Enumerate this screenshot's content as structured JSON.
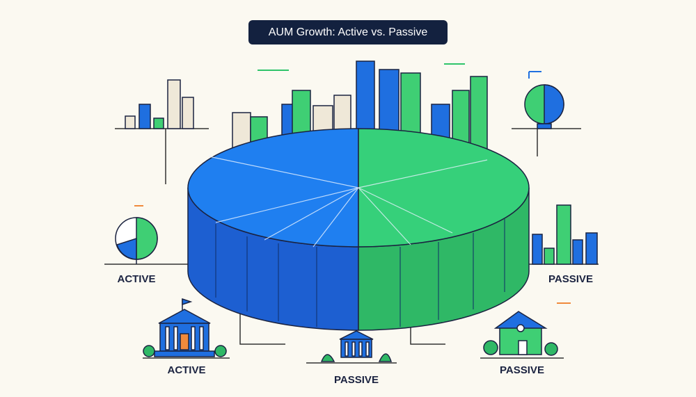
{
  "title": "AUM Growth: Active vs. Passive",
  "side_labels": [
    "ACTIVE",
    "PASSIVE"
  ],
  "bottom_labels": [
    "ACTIVE",
    "PASSIVE",
    "PASSIVE"
  ]
}
